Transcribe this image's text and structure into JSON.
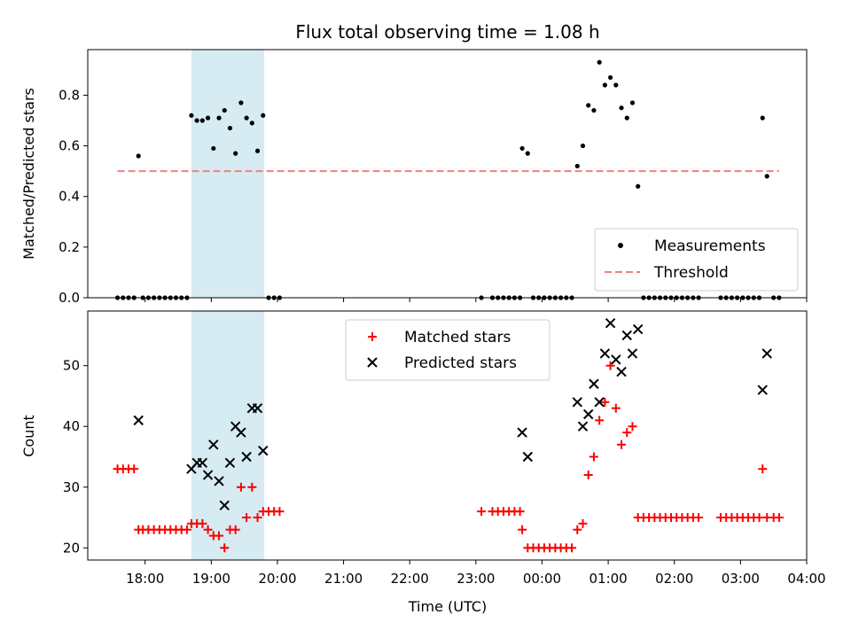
{
  "chart_data": {
    "type": "scatter",
    "title": "Flux total observing time = 1.08 h",
    "x_axis": {
      "label": "Time (UTC)",
      "range": [
        "17:08",
        "04:00"
      ],
      "ticks": [
        "18:00",
        "19:00",
        "20:00",
        "21:00",
        "22:00",
        "23:00",
        "00:00",
        "01:00",
        "02:00",
        "03:00",
        "04:00"
      ]
    },
    "shaded_interval": [
      "18:42",
      "19:48"
    ],
    "top_panel": {
      "ylabel": "Matched/Predicted stars",
      "ylim": [
        0,
        0.98
      ],
      "yticks": [
        "0.0",
        "0.2",
        "0.4",
        "0.6",
        "0.8"
      ],
      "legend_position": "lower-right",
      "threshold": {
        "name": "Threshold",
        "value": 0.5,
        "from": "17:35",
        "to": "03:35",
        "color": "#f08080"
      },
      "measurements": {
        "name": "Measurements",
        "color": "#000000",
        "points": [
          [
            "17:35",
            0
          ],
          [
            "17:40",
            0
          ],
          [
            "17:45",
            0
          ],
          [
            "17:50",
            0
          ],
          [
            "17:54",
            0.56
          ],
          [
            "17:58",
            0
          ],
          [
            "18:03",
            0
          ],
          [
            "18:08",
            0
          ],
          [
            "18:13",
            0
          ],
          [
            "18:18",
            0
          ],
          [
            "18:23",
            0
          ],
          [
            "18:28",
            0
          ],
          [
            "18:33",
            0
          ],
          [
            "18:38",
            0
          ],
          [
            "18:42",
            0.72
          ],
          [
            "18:47",
            0.7
          ],
          [
            "18:52",
            0.7
          ],
          [
            "18:57",
            0.71
          ],
          [
            "19:02",
            0.59
          ],
          [
            "19:07",
            0.71
          ],
          [
            "19:12",
            0.74
          ],
          [
            "19:17",
            0.67
          ],
          [
            "19:22",
            0.57
          ],
          [
            "19:27",
            0.77
          ],
          [
            "19:32",
            0.71
          ],
          [
            "19:37",
            0.69
          ],
          [
            "19:42",
            0.58
          ],
          [
            "19:47",
            0.72
          ],
          [
            "19:52",
            0
          ],
          [
            "19:57",
            0
          ],
          [
            "20:02",
            0
          ],
          [
            "23:05",
            0
          ],
          [
            "23:15",
            0
          ],
          [
            "23:20",
            0
          ],
          [
            "23:25",
            0
          ],
          [
            "23:30",
            0
          ],
          [
            "23:35",
            0
          ],
          [
            "23:40",
            0
          ],
          [
            "23:42",
            0.59
          ],
          [
            "23:47",
            0.57
          ],
          [
            "23:52",
            0
          ],
          [
            "23:57",
            0
          ],
          [
            "00:02",
            0
          ],
          [
            "00:07",
            0
          ],
          [
            "00:12",
            0
          ],
          [
            "00:17",
            0
          ],
          [
            "00:22",
            0
          ],
          [
            "00:27",
            0
          ],
          [
            "00:32",
            0.52
          ],
          [
            "00:37",
            0.6
          ],
          [
            "00:42",
            0.76
          ],
          [
            "00:47",
            0.74
          ],
          [
            "00:52",
            0.93
          ],
          [
            "00:57",
            0.84
          ],
          [
            "01:02",
            0.87
          ],
          [
            "01:07",
            0.84
          ],
          [
            "01:12",
            0.75
          ],
          [
            "01:17",
            0.71
          ],
          [
            "01:22",
            0.77
          ],
          [
            "01:27",
            0.44
          ],
          [
            "01:32",
            0
          ],
          [
            "01:37",
            0
          ],
          [
            "01:42",
            0
          ],
          [
            "01:47",
            0
          ],
          [
            "01:52",
            0
          ],
          [
            "01:57",
            0
          ],
          [
            "02:02",
            0
          ],
          [
            "02:07",
            0
          ],
          [
            "02:12",
            0
          ],
          [
            "02:17",
            0
          ],
          [
            "02:22",
            0
          ],
          [
            "02:42",
            0
          ],
          [
            "02:47",
            0
          ],
          [
            "02:52",
            0
          ],
          [
            "02:57",
            0
          ],
          [
            "03:02",
            0
          ],
          [
            "03:07",
            0
          ],
          [
            "03:12",
            0
          ],
          [
            "03:17",
            0
          ],
          [
            "03:20",
            0.71
          ],
          [
            "03:24",
            0.48
          ],
          [
            "03:30",
            0
          ],
          [
            "03:35",
            0
          ]
        ]
      }
    },
    "bottom_panel": {
      "ylabel": "Count",
      "ylim": [
        18,
        59
      ],
      "yticks": [
        "20",
        "30",
        "40",
        "50"
      ],
      "legend_position": "upper-center",
      "matched": {
        "name": "Matched stars",
        "color": "#ff0000",
        "points": [
          [
            "17:35",
            33
          ],
          [
            "17:40",
            33
          ],
          [
            "17:45",
            33
          ],
          [
            "17:50",
            33
          ],
          [
            "17:54",
            23
          ],
          [
            "17:58",
            23
          ],
          [
            "18:03",
            23
          ],
          [
            "18:08",
            23
          ],
          [
            "18:13",
            23
          ],
          [
            "18:18",
            23
          ],
          [
            "18:23",
            23
          ],
          [
            "18:28",
            23
          ],
          [
            "18:33",
            23
          ],
          [
            "18:38",
            23
          ],
          [
            "18:42",
            24
          ],
          [
            "18:47",
            24
          ],
          [
            "18:52",
            24
          ],
          [
            "18:57",
            23
          ],
          [
            "19:02",
            22
          ],
          [
            "19:07",
            22
          ],
          [
            "19:12",
            20
          ],
          [
            "19:17",
            23
          ],
          [
            "19:22",
            23
          ],
          [
            "19:27",
            30
          ],
          [
            "19:32",
            25
          ],
          [
            "19:37",
            30
          ],
          [
            "19:42",
            25
          ],
          [
            "19:47",
            26
          ],
          [
            "19:52",
            26
          ],
          [
            "19:57",
            26
          ],
          [
            "20:02",
            26
          ],
          [
            "23:05",
            26
          ],
          [
            "23:15",
            26
          ],
          [
            "23:20",
            26
          ],
          [
            "23:25",
            26
          ],
          [
            "23:30",
            26
          ],
          [
            "23:35",
            26
          ],
          [
            "23:40",
            26
          ],
          [
            "23:42",
            23
          ],
          [
            "23:47",
            20
          ],
          [
            "23:52",
            20
          ],
          [
            "23:57",
            20
          ],
          [
            "00:02",
            20
          ],
          [
            "00:07",
            20
          ],
          [
            "00:12",
            20
          ],
          [
            "00:17",
            20
          ],
          [
            "00:22",
            20
          ],
          [
            "00:27",
            20
          ],
          [
            "00:32",
            23
          ],
          [
            "00:37",
            24
          ],
          [
            "00:42",
            32
          ],
          [
            "00:47",
            35
          ],
          [
            "00:52",
            41
          ],
          [
            "00:57",
            44
          ],
          [
            "01:02",
            50
          ],
          [
            "01:07",
            43
          ],
          [
            "01:12",
            37
          ],
          [
            "01:17",
            39
          ],
          [
            "01:22",
            40
          ],
          [
            "01:27",
            25
          ],
          [
            "01:32",
            25
          ],
          [
            "01:37",
            25
          ],
          [
            "01:42",
            25
          ],
          [
            "01:47",
            25
          ],
          [
            "01:52",
            25
          ],
          [
            "01:57",
            25
          ],
          [
            "02:02",
            25
          ],
          [
            "02:07",
            25
          ],
          [
            "02:12",
            25
          ],
          [
            "02:17",
            25
          ],
          [
            "02:22",
            25
          ],
          [
            "02:42",
            25
          ],
          [
            "02:47",
            25
          ],
          [
            "02:52",
            25
          ],
          [
            "02:57",
            25
          ],
          [
            "03:02",
            25
          ],
          [
            "03:07",
            25
          ],
          [
            "03:12",
            25
          ],
          [
            "03:17",
            25
          ],
          [
            "03:20",
            33
          ],
          [
            "03:24",
            25
          ],
          [
            "03:30",
            25
          ],
          [
            "03:35",
            25
          ]
        ]
      },
      "predicted": {
        "name": "Predicted stars",
        "color": "#000000",
        "points": [
          [
            "17:54",
            41
          ],
          [
            "18:42",
            33
          ],
          [
            "18:47",
            34
          ],
          [
            "18:52",
            34
          ],
          [
            "18:57",
            32
          ],
          [
            "19:02",
            37
          ],
          [
            "19:07",
            31
          ],
          [
            "19:12",
            27
          ],
          [
            "19:17",
            34
          ],
          [
            "19:22",
            40
          ],
          [
            "19:27",
            39
          ],
          [
            "19:32",
            35
          ],
          [
            "19:37",
            43
          ],
          [
            "19:42",
            43
          ],
          [
            "19:47",
            36
          ],
          [
            "23:42",
            39
          ],
          [
            "23:47",
            35
          ],
          [
            "00:32",
            44
          ],
          [
            "00:37",
            40
          ],
          [
            "00:42",
            42
          ],
          [
            "00:47",
            47
          ],
          [
            "00:52",
            44
          ],
          [
            "00:57",
            52
          ],
          [
            "01:02",
            57
          ],
          [
            "01:07",
            51
          ],
          [
            "01:12",
            49
          ],
          [
            "01:17",
            55
          ],
          [
            "01:22",
            52
          ],
          [
            "01:27",
            56
          ],
          [
            "03:20",
            46
          ],
          [
            "03:24",
            52
          ]
        ]
      }
    }
  }
}
